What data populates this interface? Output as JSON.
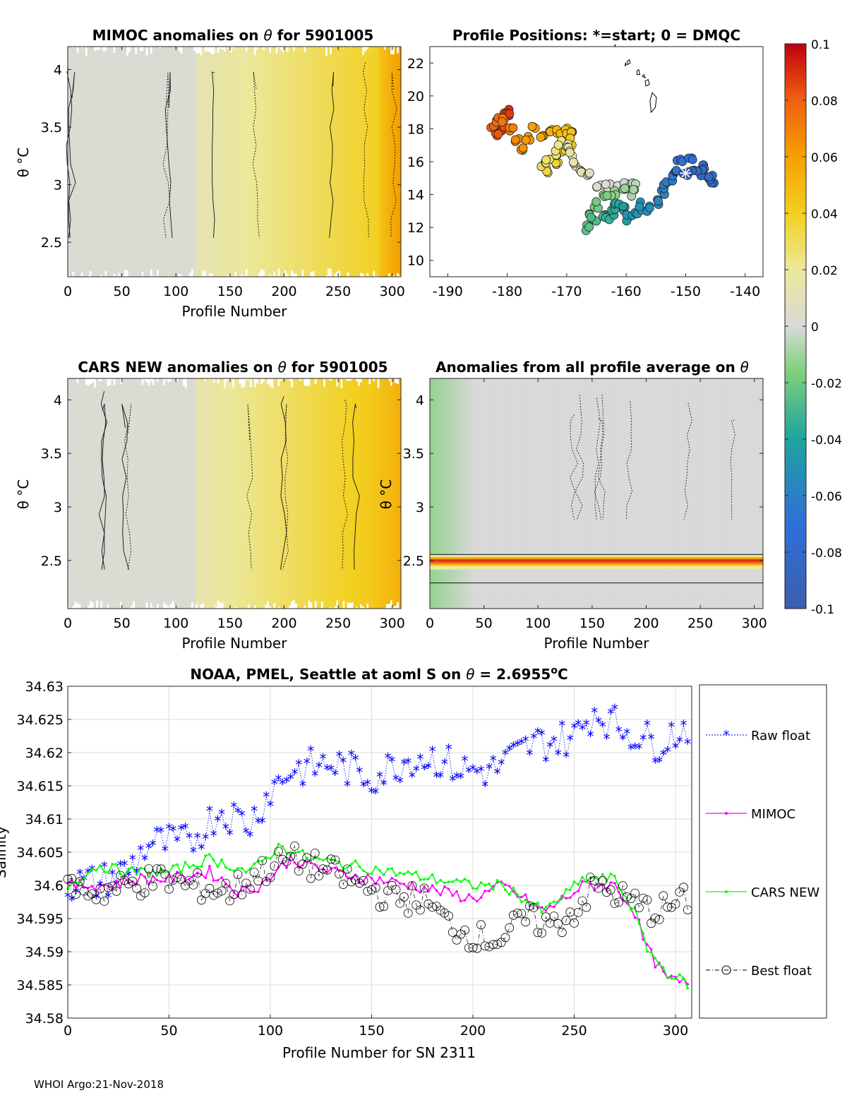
{
  "footer": "WHOI Argo:21-Nov-2018",
  "colorbar": {
    "ticks": [
      "0.1",
      "0.08",
      "0.06",
      "0.04",
      "0.02",
      "0",
      "-0.02",
      "-0.04",
      "-0.06",
      "-0.08",
      "-0.1"
    ],
    "range": [
      -0.1,
      0.1
    ]
  },
  "chart_data": [
    {
      "id": "mimoc",
      "type": "heatmap",
      "title_prefix": "MIMOC anomalies on ",
      "title_symbol": "θ",
      "title_suffix": " for 5901005",
      "xlabel": "Profile Number",
      "ylabel": "θ °C",
      "xlim": [
        0,
        308
      ],
      "ylim": [
        2.2,
        4.2
      ],
      "xticks": [
        "0",
        "50",
        "100",
        "150",
        "200",
        "250",
        "300"
      ],
      "yticks": [
        "4",
        "3.5",
        "3",
        "2.5"
      ],
      "description_values": "anomaly rises from about 0.005 near profile 0 to about 0.045 near profile 305"
    },
    {
      "id": "positions",
      "type": "scatter",
      "title": "Profile Positions: *=start; 0 = DMQC",
      "xlim": [
        -193,
        -137
      ],
      "ylim": [
        9,
        23
      ],
      "xticks": [
        "-190",
        "-180",
        "-170",
        "-160",
        "-150",
        "-140"
      ],
      "yticks": [
        "22",
        "20",
        "18",
        "16",
        "14",
        "12",
        "10"
      ],
      "start": [
        -150,
        15.3
      ],
      "track": [
        [
          -150,
          15.3
        ],
        [
          -148.5,
          15.6
        ],
        [
          -147,
          15.4
        ],
        [
          -146,
          15.0
        ],
        [
          -145.5,
          14.8
        ],
        [
          -147.5,
          15.8
        ],
        [
          -149,
          16.0
        ],
        [
          -151,
          16.2
        ],
        [
          -151.5,
          15.6
        ],
        [
          -152.5,
          15.0
        ],
        [
          -153.5,
          14.8
        ],
        [
          -154,
          14.2
        ],
        [
          -155,
          13.5
        ],
        [
          -156,
          13.1
        ],
        [
          -157.5,
          13.3
        ],
        [
          -158.5,
          12.8
        ],
        [
          -159.5,
          12.6
        ],
        [
          -160.5,
          13.1
        ],
        [
          -161.5,
          13.5
        ],
        [
          -162,
          12.9
        ],
        [
          -163,
          12.6
        ],
        [
          -164,
          12.9
        ],
        [
          -165.5,
          12.4
        ],
        [
          -166.5,
          12.0
        ],
        [
          -166,
          12.7
        ],
        [
          -165,
          13.4
        ],
        [
          -163.5,
          13.8
        ],
        [
          -162,
          14.1
        ],
        [
          -160.5,
          14.3
        ],
        [
          -159,
          14.1
        ],
        [
          -158.5,
          14.6
        ],
        [
          -160,
          14.5
        ],
        [
          -161.5,
          14.3
        ],
        [
          -163,
          14.4
        ],
        [
          -164.5,
          14.7
        ],
        [
          -166,
          15.1
        ],
        [
          -167.5,
          15.5
        ],
        [
          -168.5,
          15.9
        ],
        [
          -169,
          16.4
        ],
        [
          -170,
          16.9
        ],
        [
          -171,
          17.2
        ],
        [
          -172,
          16.6
        ],
        [
          -173,
          16.1
        ],
        [
          -174,
          15.9
        ],
        [
          -173,
          15.5
        ],
        [
          -171.5,
          15.9
        ],
        [
          -170.5,
          16.5
        ],
        [
          -169.5,
          17.2
        ],
        [
          -169,
          17.8
        ],
        [
          -170,
          17.9
        ],
        [
          -171.5,
          17.7
        ],
        [
          -172.5,
          17.9
        ],
        [
          -174,
          17.6
        ],
        [
          -175.5,
          17.9
        ],
        [
          -176.5,
          17.5
        ],
        [
          -177.5,
          16.9
        ],
        [
          -178.5,
          17.4
        ],
        [
          -179.5,
          17.9
        ],
        [
          -180.5,
          18.5
        ],
        [
          -181.5,
          18.6
        ],
        [
          -182.5,
          18.2
        ],
        [
          -181.5,
          17.8
        ],
        [
          -180.5,
          17.9
        ],
        [
          -179.5,
          18.7
        ],
        [
          -180,
          19.0
        ]
      ],
      "coast_islands": [
        [
          [
            -155.8,
            19.0
          ],
          [
            -155.1,
            19.3
          ],
          [
            -154.9,
            19.9
          ],
          [
            -155.6,
            20.2
          ],
          [
            -156.0,
            19.7
          ]
        ],
        [
          [
            -156.7,
            20.6
          ],
          [
            -156.1,
            20.7
          ],
          [
            -156.3,
            21.0
          ],
          [
            -156.8,
            20.9
          ]
        ],
        [
          [
            -157.3,
            21.2
          ],
          [
            -156.8,
            21.1
          ],
          [
            -157.0,
            21.3
          ]
        ],
        [
          [
            -158.2,
            21.3
          ],
          [
            -157.7,
            21.3
          ],
          [
            -157.9,
            21.6
          ],
          [
            -158.2,
            21.5
          ]
        ],
        [
          [
            -159.8,
            21.9
          ],
          [
            -159.3,
            22.0
          ],
          [
            -159.5,
            22.2
          ],
          [
            -159.8,
            22.1
          ]
        ],
        [
          [
            -160.2,
            21.8
          ],
          [
            -160.0,
            21.9
          ],
          [
            -160.1,
            22.0
          ]
        ],
        [
          [
            -161.9,
            23.0
          ],
          [
            -161.8,
            23.1
          ],
          [
            -161.9,
            23.1
          ]
        ]
      ]
    },
    {
      "id": "cars",
      "type": "heatmap",
      "title_prefix": "CARS NEW anomalies on ",
      "title_symbol": "θ",
      "title_suffix": " for 5901005",
      "xlabel": "Profile Number",
      "ylabel": "θ °C",
      "xlim": [
        0,
        308
      ],
      "ylim": [
        2.05,
        4.2
      ],
      "xticks": [
        "0",
        "50",
        "100",
        "150",
        "200",
        "250",
        "300"
      ],
      "yticks": [
        "4",
        "3.5",
        "3",
        "2.5"
      ]
    },
    {
      "id": "allavg",
      "type": "heatmap",
      "title_prefix": "Anomalies from all profile average on ",
      "title_symbol": "θ",
      "title_suffix": "",
      "xlabel": "Profile Number",
      "ylabel": "θ °C",
      "xlim": [
        0,
        308
      ],
      "ylim": [
        2.05,
        4.2
      ],
      "xticks": [
        "0",
        "50",
        "100",
        "150",
        "200",
        "250",
        "300"
      ],
      "yticks": [
        "4",
        "3.5",
        "3",
        "2.5"
      ],
      "band_center": 2.5,
      "band_peak": 0.09
    },
    {
      "id": "salinity",
      "type": "line",
      "title_prefix": "NOAA, PMEL, Seattle at aoml S on ",
      "title_symbol": "θ",
      "title_suffix": " = 2.6955",
      "title_unit": "o",
      "title_unit_tail": "C",
      "xlabel": "Profile Number for SN 2311",
      "ylabel": "Salinity",
      "xlim": [
        0,
        308
      ],
      "ylim": [
        34.58,
        34.63
      ],
      "xticks": [
        "0",
        "50",
        "100",
        "150",
        "200",
        "250",
        "300"
      ],
      "yticks": [
        "34.63",
        "34.625",
        "34.62",
        "34.615",
        "34.61",
        "34.605",
        "34.6",
        "34.595",
        "34.59",
        "34.585",
        "34.58"
      ],
      "legend": [
        "Raw float",
        "MIMOC",
        "CARS NEW",
        "Best float"
      ],
      "series": [
        {
          "name": "Raw float",
          "color": "#0000ff",
          "anchors": [
            [
              0,
              34.6
            ],
            [
              15,
              34.6
            ],
            [
              30,
              34.602
            ],
            [
              40,
              34.606
            ],
            [
              60,
              34.606
            ],
            [
              75,
              34.611
            ],
            [
              90,
              34.609
            ],
            [
              100,
              34.614
            ],
            [
              110,
              34.617
            ],
            [
              130,
              34.618
            ],
            [
              150,
              34.616
            ],
            [
              170,
              34.619
            ],
            [
              180,
              34.619
            ],
            [
              195,
              34.617
            ],
            [
              210,
              34.617
            ],
            [
              230,
              34.621
            ],
            [
              250,
              34.622
            ],
            [
              260,
              34.626
            ],
            [
              270,
              34.624
            ],
            [
              290,
              34.621
            ],
            [
              307,
              34.624
            ]
          ]
        },
        {
          "name": "MIMOC",
          "color": "#ff00ff",
          "anchors": [
            [
              0,
              34.6
            ],
            [
              20,
              34.6
            ],
            [
              35,
              34.601
            ],
            [
              50,
              34.601
            ],
            [
              70,
              34.602
            ],
            [
              85,
              34.599
            ],
            [
              95,
              34.6
            ],
            [
              110,
              34.604
            ],
            [
              130,
              34.602
            ],
            [
              150,
              34.601
            ],
            [
              170,
              34.6
            ],
            [
              185,
              34.599
            ],
            [
              200,
              34.598
            ],
            [
              215,
              34.6
            ],
            [
              235,
              34.596
            ],
            [
              255,
              34.6
            ],
            [
              270,
              34.6
            ],
            [
              280,
              34.596
            ],
            [
              285,
              34.591
            ],
            [
              295,
              34.586
            ],
            [
              307,
              34.585
            ]
          ]
        },
        {
          "name": "CARS NEW",
          "color": "#00ff00",
          "anchors": [
            [
              0,
              34.6
            ],
            [
              15,
              34.603
            ],
            [
              30,
              34.602
            ],
            [
              50,
              34.602
            ],
            [
              70,
              34.604
            ],
            [
              90,
              34.602
            ],
            [
              105,
              34.606
            ],
            [
              120,
              34.604
            ],
            [
              140,
              34.603
            ],
            [
              160,
              34.602
            ],
            [
              180,
              34.601
            ],
            [
              200,
              34.6
            ],
            [
              215,
              34.6
            ],
            [
              235,
              34.596
            ],
            [
              255,
              34.601
            ],
            [
              270,
              34.601
            ],
            [
              280,
              34.596
            ],
            [
              285,
              34.591
            ],
            [
              295,
              34.587
            ],
            [
              307,
              34.585
            ]
          ]
        },
        {
          "name": "Best float",
          "color": "#000000",
          "anchors": [
            [
              0,
              34.6
            ],
            [
              15,
              34.599
            ],
            [
              30,
              34.6
            ],
            [
              45,
              34.601
            ],
            [
              60,
              34.6
            ],
            [
              80,
              34.599
            ],
            [
              95,
              34.602
            ],
            [
              110,
              34.604
            ],
            [
              130,
              34.602
            ],
            [
              145,
              34.6
            ],
            [
              160,
              34.598
            ],
            [
              175,
              34.598
            ],
            [
              185,
              34.595
            ],
            [
              195,
              34.593
            ],
            [
              205,
              34.592
            ],
            [
              215,
              34.592
            ],
            [
              225,
              34.595
            ],
            [
              240,
              34.594
            ],
            [
              250,
              34.596
            ],
            [
              260,
              34.6
            ],
            [
              275,
              34.598
            ],
            [
              290,
              34.596
            ],
            [
              307,
              34.598
            ]
          ]
        }
      ]
    }
  ]
}
